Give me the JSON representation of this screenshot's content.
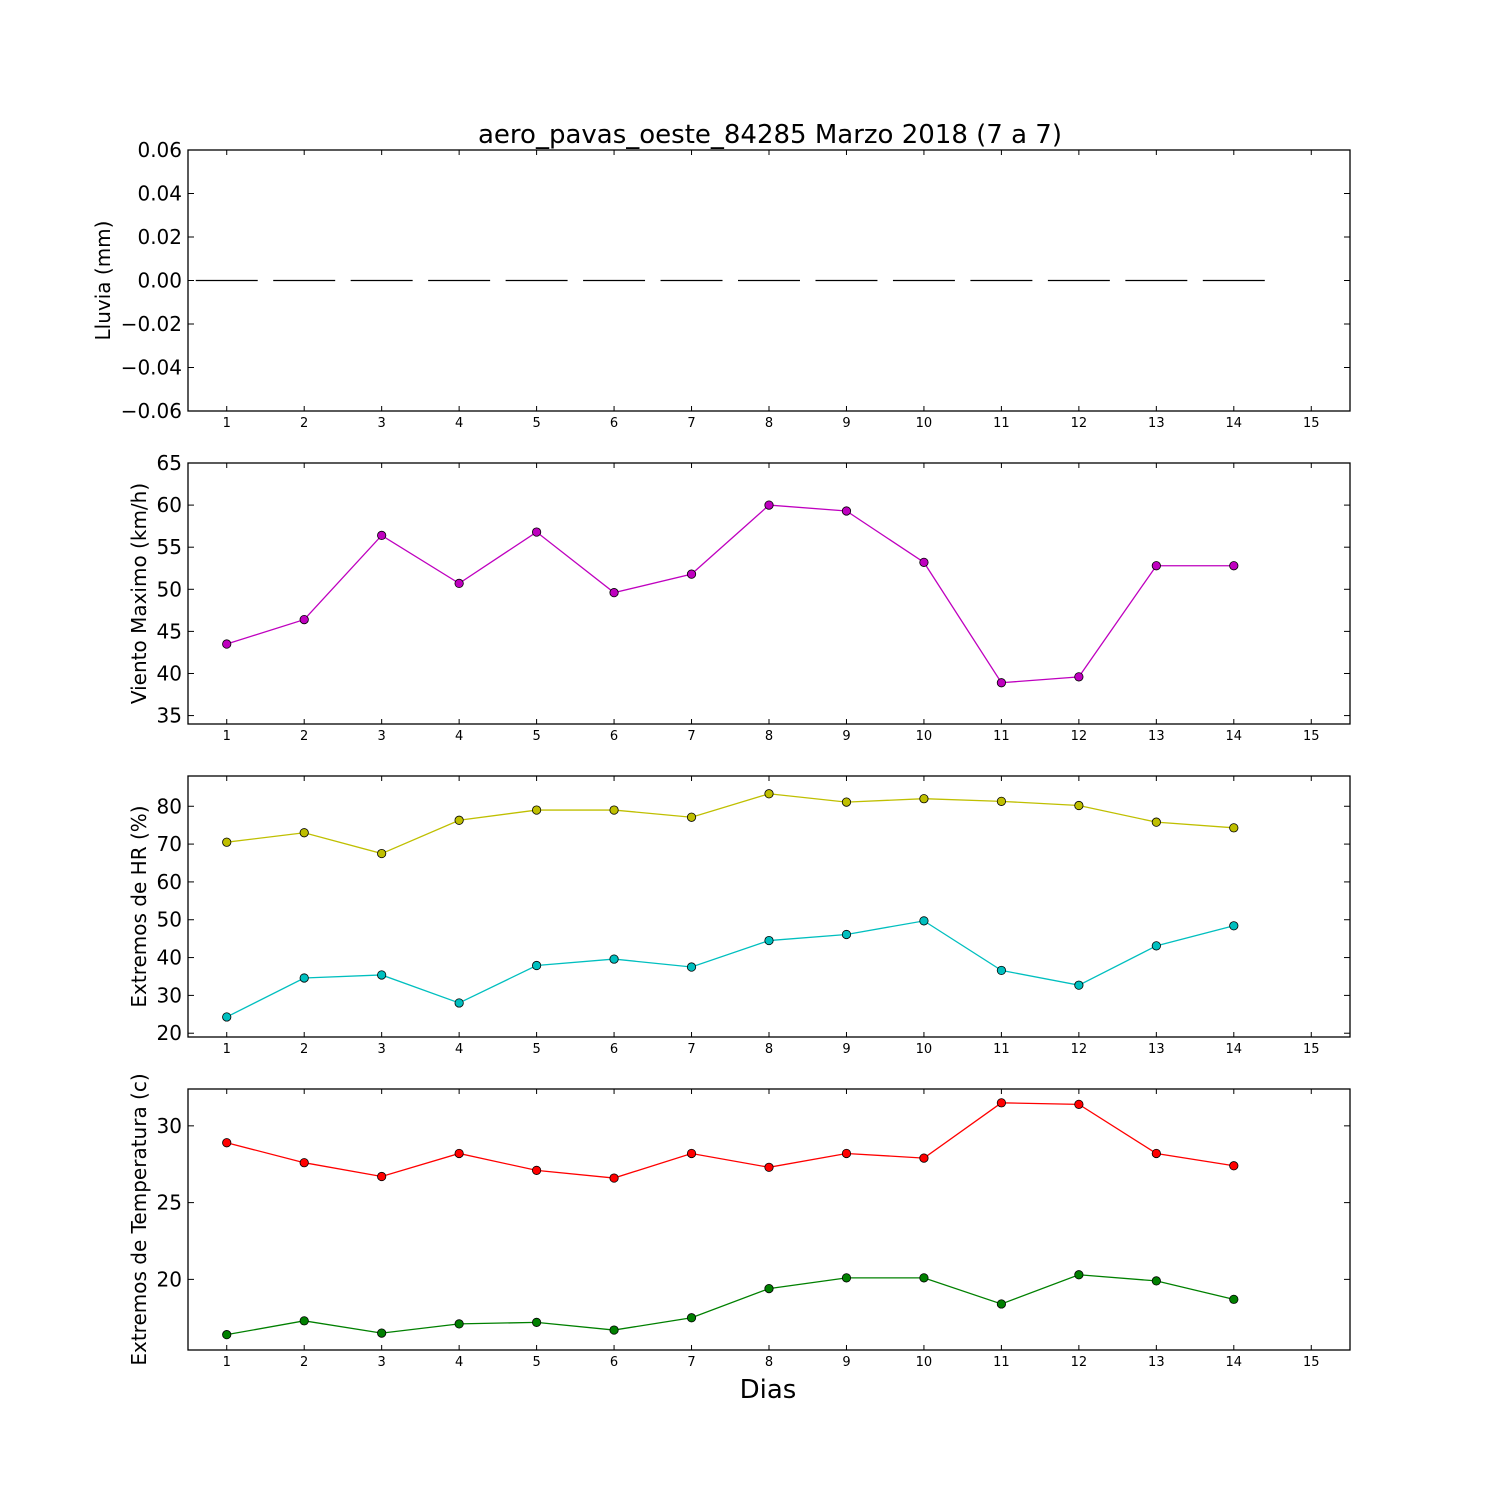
{
  "chart_data": [
    {
      "type": "line",
      "title": "aero_pavas_oeste_84285 Marzo 2018  (7 a 7)",
      "xlabel": "",
      "ylabel": "Lluvia (mm)",
      "xlim": [
        0.5,
        15.5
      ],
      "ylim": [
        -0.06,
        0.06
      ],
      "x_ticks": [
        1,
        2,
        3,
        4,
        5,
        6,
        7,
        8,
        9,
        10,
        11,
        12,
        13,
        14,
        15
      ],
      "y_ticks": [
        "0.06",
        "0.04",
        "0.02",
        "0.00",
        "−0.02",
        "−0.04",
        "−0.06"
      ],
      "grid": false,
      "series": [
        {
          "style": "bar-segments",
          "color": "#000000",
          "x": [
            1,
            2,
            3,
            4,
            5,
            6,
            7,
            8,
            9,
            10,
            11,
            12,
            13,
            14
          ],
          "values": [
            0,
            0,
            0,
            0,
            0,
            0,
            0,
            0,
            0,
            0,
            0,
            0,
            0,
            0
          ]
        }
      ]
    },
    {
      "type": "line",
      "xlabel": "",
      "ylabel": "Viento Maximo (km/h)",
      "xlim": [
        0.5,
        15.5
      ],
      "ylim": [
        34,
        65
      ],
      "x_ticks": [
        1,
        2,
        3,
        4,
        5,
        6,
        7,
        8,
        9,
        10,
        11,
        12,
        13,
        14,
        15
      ],
      "y_ticks": [
        "35",
        "40",
        "45",
        "50",
        "55",
        "60",
        "65"
      ],
      "grid": false,
      "series": [
        {
          "color": "#bf00bf",
          "x": [
            1,
            2,
            3,
            4,
            5,
            6,
            7,
            8,
            9,
            10,
            11,
            12,
            13,
            14
          ],
          "values": [
            43.5,
            46.4,
            56.4,
            50.7,
            56.8,
            49.6,
            51.8,
            60.0,
            59.3,
            53.2,
            38.9,
            39.6,
            52.8,
            52.8
          ]
        }
      ]
    },
    {
      "type": "line",
      "xlabel": "",
      "ylabel": "Extremos de HR (%)",
      "xlim": [
        0.5,
        15.5
      ],
      "ylim": [
        19,
        88
      ],
      "x_ticks": [
        1,
        2,
        3,
        4,
        5,
        6,
        7,
        8,
        9,
        10,
        11,
        12,
        13,
        14,
        15
      ],
      "y_ticks": [
        "20",
        "30",
        "40",
        "50",
        "60",
        "70",
        "80"
      ],
      "grid": false,
      "series": [
        {
          "color": "#bfbf00",
          "x": [
            1,
            2,
            3,
            4,
            5,
            6,
            7,
            8,
            9,
            10,
            11,
            12,
            13,
            14
          ],
          "values": [
            70.5,
            73.0,
            67.5,
            76.3,
            79.0,
            79.0,
            77.1,
            83.3,
            81.1,
            82.0,
            81.3,
            80.2,
            75.8,
            74.3
          ]
        },
        {
          "color": "#00bfbf",
          "x": [
            1,
            2,
            3,
            4,
            5,
            6,
            7,
            8,
            9,
            10,
            11,
            12,
            13,
            14
          ],
          "values": [
            24.3,
            34.6,
            35.4,
            28.0,
            37.9,
            39.6,
            37.5,
            44.5,
            46.1,
            49.7,
            36.6,
            32.7,
            43.1,
            48.4
          ]
        }
      ]
    },
    {
      "type": "line",
      "xlabel": "Dias",
      "ylabel": "Extremos de Temperatura (c)",
      "xlim": [
        0.5,
        15.5
      ],
      "ylim": [
        15.4,
        32.4
      ],
      "x_ticks": [
        1,
        2,
        3,
        4,
        5,
        6,
        7,
        8,
        9,
        10,
        11,
        12,
        13,
        14,
        15
      ],
      "y_ticks": [
        "20",
        "25",
        "30"
      ],
      "grid": false,
      "series": [
        {
          "color": "#ff0000",
          "x": [
            1,
            2,
            3,
            4,
            5,
            6,
            7,
            8,
            9,
            10,
            11,
            12,
            13,
            14
          ],
          "values": [
            28.9,
            27.6,
            26.7,
            28.2,
            27.1,
            26.6,
            28.2,
            27.3,
            28.2,
            27.9,
            31.5,
            31.4,
            28.2,
            27.4
          ]
        },
        {
          "color": "#008000",
          "x": [
            1,
            2,
            3,
            4,
            5,
            6,
            7,
            8,
            9,
            10,
            11,
            12,
            13,
            14
          ],
          "values": [
            16.4,
            17.3,
            16.5,
            17.1,
            17.2,
            16.7,
            17.5,
            19.4,
            20.1,
            20.1,
            18.4,
            20.3,
            19.9,
            18.7
          ]
        }
      ]
    }
  ]
}
